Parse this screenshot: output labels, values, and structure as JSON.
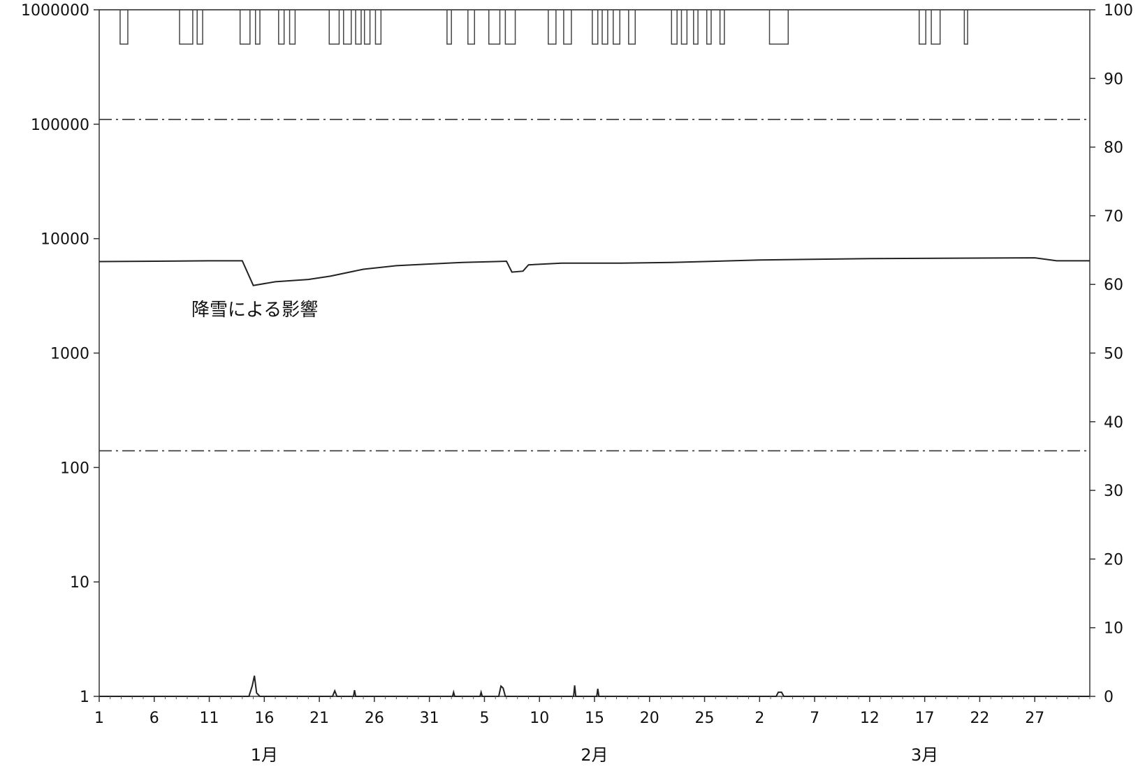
{
  "chart_data": {
    "type": "line",
    "x_tick_labels": [
      "1",
      "6",
      "11",
      "16",
      "21",
      "26",
      "31",
      "5",
      "10",
      "15",
      "20",
      "25",
      "2",
      "7",
      "12",
      "17",
      "22",
      "27"
    ],
    "month_labels": [
      "1月",
      "2月",
      "3月"
    ],
    "left_axis": {
      "scale": "log",
      "ylim": [
        1,
        1000000
      ],
      "tick_labels": [
        "1",
        "10",
        "100",
        "1000",
        "10000",
        "100000",
        "1000000"
      ]
    },
    "right_axis": {
      "scale": "linear",
      "ylim": [
        0,
        100
      ],
      "tick_labels": [
        "0",
        "10",
        "20",
        "30",
        "40",
        "50",
        "60",
        "70",
        "80",
        "90",
        "100"
      ]
    },
    "annotation": "降雪による影響",
    "reference_lines": [
      {
        "axis": "left",
        "value": 110000,
        "style": "dash-dot"
      },
      {
        "axis": "left",
        "value": 140,
        "style": "dash-dot"
      }
    ],
    "series": [
      {
        "axis": "left",
        "color": "#222222",
        "points": [
          [
            0,
            6300
          ],
          [
            5,
            6350
          ],
          [
            10,
            6400
          ],
          [
            13,
            6400
          ],
          [
            14,
            3900
          ],
          [
            16,
            4200
          ],
          [
            19,
            4400
          ],
          [
            21,
            4700
          ],
          [
            24,
            5400
          ],
          [
            27,
            5800
          ],
          [
            30,
            6000
          ],
          [
            33,
            6200
          ],
          [
            36,
            6300
          ],
          [
            37,
            6350
          ],
          [
            37.5,
            5100
          ],
          [
            38.5,
            5200
          ],
          [
            39,
            5900
          ],
          [
            42,
            6100
          ],
          [
            47,
            6100
          ],
          [
            52,
            6200
          ],
          [
            60,
            6500
          ],
          [
            70,
            6700
          ],
          [
            85,
            6800
          ],
          [
            87,
            6400
          ],
          [
            90,
            6400
          ]
        ]
      },
      {
        "axis": "right",
        "color": "#222222",
        "points": [
          [
            0,
            0
          ],
          [
            13.6,
            0
          ],
          [
            13.9,
            1.5
          ],
          [
            14.1,
            3
          ],
          [
            14.3,
            0.5
          ],
          [
            14.6,
            0
          ],
          [
            21.2,
            0
          ],
          [
            21.4,
            0.8
          ],
          [
            21.6,
            0
          ],
          [
            23.1,
            0
          ],
          [
            23.2,
            0.9
          ],
          [
            23.3,
            0
          ],
          [
            32.1,
            0
          ],
          [
            32.2,
            0.6
          ],
          [
            32.3,
            0
          ],
          [
            34.6,
            0
          ],
          [
            34.7,
            0.6
          ],
          [
            34.8,
            0
          ],
          [
            36.3,
            0
          ],
          [
            36.5,
            1.5
          ],
          [
            36.7,
            1.2
          ],
          [
            36.9,
            0
          ],
          [
            43.1,
            0
          ],
          [
            43.2,
            1.6
          ],
          [
            43.3,
            0
          ],
          [
            45.2,
            0
          ],
          [
            45.3,
            1.1
          ],
          [
            45.4,
            0
          ],
          [
            61.5,
            0
          ],
          [
            61.7,
            0.6
          ],
          [
            62.0,
            0.6
          ],
          [
            62.2,
            0
          ],
          [
            90,
            0
          ]
        ]
      },
      {
        "axis": "right",
        "color": "#444444",
        "type": "pulses",
        "baseline": 100,
        "pulse_level": 95,
        "pulses": [
          [
            1.9,
            2.6
          ],
          [
            7.3,
            8.5
          ],
          [
            8.9,
            9.4
          ],
          [
            12.8,
            13.7
          ],
          [
            14.2,
            14.6
          ],
          [
            16.3,
            16.8
          ],
          [
            17.3,
            17.8
          ],
          [
            20.9,
            21.8
          ],
          [
            22.2,
            22.9
          ],
          [
            23.3,
            23.8
          ],
          [
            24.1,
            24.6
          ],
          [
            25.1,
            25.6
          ],
          [
            31.6,
            32.0
          ],
          [
            33.5,
            34.1
          ],
          [
            35.4,
            36.4
          ],
          [
            36.9,
            37.8
          ],
          [
            40.8,
            41.5
          ],
          [
            42.2,
            42.9
          ],
          [
            44.8,
            45.3
          ],
          [
            45.7,
            46.2
          ],
          [
            46.7,
            47.3
          ],
          [
            48.1,
            48.7
          ],
          [
            52.0,
            52.5
          ],
          [
            52.9,
            53.4
          ],
          [
            54.0,
            54.4
          ],
          [
            55.2,
            55.6
          ],
          [
            56.4,
            56.8
          ],
          [
            60.9,
            62.6
          ],
          [
            74.5,
            75.1
          ],
          [
            75.6,
            76.4
          ],
          [
            78.6,
            78.9
          ]
        ]
      }
    ]
  }
}
